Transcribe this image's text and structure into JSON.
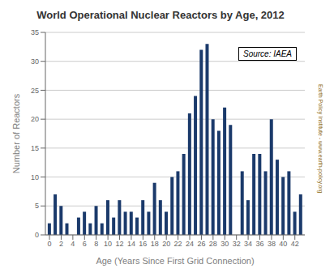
{
  "chart_data": {
    "type": "bar",
    "title": "World Operational Nuclear Reactors by Age, 2012",
    "xlabel": "Age (Years Since First Grid Connection)",
    "ylabel": "Number of Reactors",
    "x": [
      0,
      1,
      2,
      3,
      4,
      5,
      6,
      7,
      8,
      9,
      10,
      11,
      12,
      13,
      14,
      15,
      16,
      17,
      18,
      19,
      20,
      21,
      22,
      23,
      24,
      25,
      26,
      27,
      28,
      29,
      30,
      31,
      32,
      33,
      34,
      35,
      36,
      37,
      38,
      39,
      40,
      41,
      42,
      43
    ],
    "values": [
      2,
      7,
      5,
      2,
      0,
      3,
      4,
      2,
      5,
      2,
      6,
      3,
      6,
      4,
      4,
      3,
      6,
      4,
      9,
      6,
      4,
      10,
      11,
      14,
      21,
      24,
      32,
      33,
      20,
      18,
      22,
      19,
      0,
      11,
      6,
      14,
      14,
      11,
      20,
      13,
      10,
      11,
      4,
      7
    ],
    "color": "#1b3a6b",
    "xlim": [
      -0.7,
      43.7
    ],
    "xticks": [
      0,
      2,
      4,
      6,
      8,
      10,
      12,
      14,
      16,
      18,
      20,
      22,
      24,
      26,
      28,
      30,
      32,
      34,
      36,
      38,
      40,
      42
    ],
    "ylim": [
      0,
      35
    ],
    "yticks": [
      0,
      5,
      10,
      15,
      20,
      25,
      30,
      35
    ],
    "grid": true,
    "annotations": [
      "Source: IAEA",
      "Earth Policy Institute - www.earth-policy.org"
    ]
  }
}
